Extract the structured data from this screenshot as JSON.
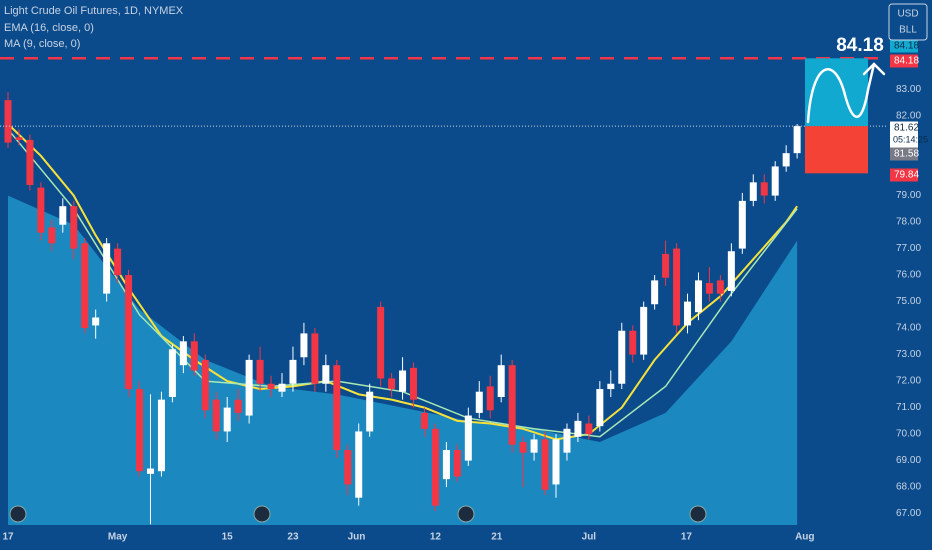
{
  "chart_data": {
    "type": "candlestick",
    "title": "Light Crude Oil Futures, 1D, NYMEX",
    "currency": "USD",
    "unit": "BLL",
    "up_color": "#ffffff",
    "down_color": "#f23645",
    "open": [
      82.6,
      81.2,
      81.1,
      79.3,
      77.8,
      77.9,
      78.6,
      77.2,
      74.1,
      75.3,
      77.0,
      76.0,
      71.7,
      68.5,
      68.6,
      71.4,
      72.6,
      73.5,
      72.8,
      71.3,
      70.1,
      71.3,
      70.7,
      72.8,
      71.9,
      71.6,
      71.9,
      72.9,
      73.8,
      71.9,
      72.6,
      69.4,
      67.6,
      70.1,
      74.8,
      72.1,
      71.6,
      72.5,
      70.8,
      70.2,
      68.3,
      69.4,
      69.0,
      70.8,
      71.8,
      71.4,
      72.6,
      69.7,
      69.3,
      69.8,
      68.1,
      69.3,
      69.9,
      70.4,
      70.3,
      71.7,
      71.9,
      73.9,
      73.0,
      74.9,
      76.8,
      77.0,
      74.1,
      74.6,
      75.7,
      75.8,
      75.4,
      77.0,
      78.8,
      79.5,
      79.0,
      80.1,
      80.6
    ],
    "high": [
      82.9,
      81.5,
      81.3,
      79.5,
      78.1,
      78.9,
      78.8,
      77.4,
      74.7,
      77.4,
      77.2,
      76.2,
      72.0,
      71.5,
      71.6,
      73.4,
      73.7,
      73.8,
      73.0,
      71.6,
      71.4,
      71.7,
      73.0,
      73.3,
      72.2,
      72.3,
      73.3,
      74.2,
      74.0,
      73.0,
      72.8,
      69.6,
      70.4,
      71.9,
      75.0,
      72.3,
      72.9,
      72.7,
      71.0,
      70.4,
      69.7,
      69.6,
      71.0,
      72.0,
      72.2,
      73.0,
      72.8,
      69.9,
      70.0,
      70.1,
      70.0,
      70.4,
      70.8,
      70.7,
      72.0,
      72.4,
      74.2,
      74.1,
      75.0,
      76.0,
      77.3,
      77.2,
      75.3,
      76.1,
      76.3,
      76.0,
      77.2,
      79.1,
      79.8,
      79.8,
      80.3,
      80.9,
      81.7
    ],
    "low": [
      80.8,
      80.9,
      79.2,
      77.3,
      76.9,
      77.6,
      76.6,
      73.8,
      73.6,
      75.0,
      75.7,
      71.4,
      68.4,
      66.6,
      68.4,
      71.2,
      72.3,
      72.2,
      70.6,
      69.8,
      69.7,
      70.5,
      70.4,
      71.6,
      71.4,
      71.4,
      71.6,
      72.6,
      71.6,
      71.6,
      69.1,
      67.7,
      67.3,
      69.9,
      71.8,
      71.4,
      71.3,
      71.0,
      69.9,
      67.1,
      68.0,
      68.2,
      68.8,
      70.6,
      70.6,
      71.2,
      69.3,
      68.0,
      69.0,
      67.7,
      67.6,
      69.0,
      69.7,
      69.8,
      70.1,
      71.4,
      71.7,
      72.7,
      72.8,
      74.7,
      75.6,
      73.8,
      73.8,
      74.3,
      75.0,
      75.0,
      75.2,
      76.8,
      78.6,
      78.7,
      78.8,
      79.9,
      80.4
    ],
    "close": [
      81.0,
      81.1,
      79.4,
      77.6,
      77.2,
      78.6,
      77.0,
      74.0,
      74.4,
      77.2,
      76.0,
      71.7,
      68.6,
      68.7,
      71.3,
      73.2,
      73.5,
      72.4,
      70.9,
      70.1,
      71.0,
      70.8,
      72.8,
      71.9,
      71.7,
      71.9,
      72.8,
      73.8,
      71.9,
      72.6,
      69.4,
      68.1,
      70.1,
      71.6,
      72.1,
      71.7,
      72.4,
      71.3,
      70.2,
      67.3,
      69.4,
      68.4,
      70.7,
      71.6,
      70.9,
      72.6,
      69.6,
      69.3,
      69.8,
      67.9,
      69.8,
      70.2,
      70.5,
      70.0,
      71.7,
      71.9,
      73.9,
      73.0,
      74.8,
      75.8,
      75.9,
      74.1,
      75.0,
      75.8,
      75.3,
      75.3,
      76.9,
      78.8,
      79.5,
      79.0,
      80.1,
      80.6,
      81.62
    ],
    "lines": [
      {
        "name": "EMA (16, close, 0)",
        "color": "#f7e23a",
        "x": [
          0,
          3,
          6,
          8,
          11,
          14,
          17,
          20,
          23,
          26,
          29,
          32,
          35,
          38,
          41,
          44,
          47,
          50,
          53,
          56,
          59,
          62,
          65,
          68,
          71,
          72
        ],
        "values": [
          81.7,
          80.5,
          79.0,
          77.5,
          75.5,
          73.7,
          72.8,
          72.0,
          71.7,
          71.8,
          72.0,
          71.5,
          71.3,
          71.0,
          70.5,
          70.4,
          70.2,
          69.8,
          70.0,
          71.0,
          72.8,
          74.2,
          75.2,
          76.6,
          78.0,
          78.6
        ]
      },
      {
        "name": "MA (9, close, 0)",
        "color": "#a8e8b4",
        "x": [
          0,
          6,
          12,
          18,
          24,
          30,
          36,
          42,
          48,
          54,
          60,
          66,
          72
        ],
        "values": [
          81.5,
          78.5,
          74.5,
          72.0,
          71.8,
          72.0,
          71.6,
          70.6,
          70.2,
          69.9,
          71.8,
          75.3,
          78.5
        ]
      }
    ],
    "area": {
      "color": "#1d8fc4",
      "x": [
        0,
        6,
        12,
        18,
        24,
        30,
        36,
        42,
        48,
        54,
        60,
        66,
        72
      ],
      "values": [
        79.0,
        77.9,
        74.7,
        72.8,
        71.8,
        71.5,
        71.0,
        70.5,
        70.2,
        69.7,
        70.8,
        73.5,
        77.3
      ]
    },
    "xticks": [
      {
        "value": 0,
        "label": "17"
      },
      {
        "value": 10,
        "label": "May"
      },
      {
        "value": 20,
        "label": "15"
      },
      {
        "value": 26,
        "label": "23"
      },
      {
        "value": 31.8,
        "label": "Jun"
      },
      {
        "value": 39,
        "label": "12"
      },
      {
        "value": 44.6,
        "label": "21"
      },
      {
        "value": 53,
        "label": "Jul"
      },
      {
        "value": 61.9,
        "label": "17"
      },
      {
        "value": 72.7,
        "label": "Aug"
      }
    ],
    "ylim": [
      66.57,
      86.38
    ],
    "yticks": [
      {
        "value": 67,
        "label": "67.00"
      },
      {
        "value": 68,
        "label": "68.00"
      },
      {
        "value": 69,
        "label": "69.00"
      },
      {
        "value": 70,
        "label": "70.00"
      },
      {
        "value": 71,
        "label": "71.00"
      },
      {
        "value": 72,
        "label": "72.00"
      },
      {
        "value": 73,
        "label": "73.00"
      },
      {
        "value": 74,
        "label": "74.00"
      },
      {
        "value": 75,
        "label": "75.00"
      },
      {
        "value": 76,
        "label": "76.00"
      },
      {
        "value": 77,
        "label": "77.00"
      },
      {
        "value": 78,
        "label": "78.00"
      },
      {
        "value": 79,
        "label": "79.00"
      },
      {
        "value": 82,
        "label": "82.00"
      },
      {
        "value": 83,
        "label": "83.00"
      }
    ],
    "position": {
      "target": 84.18,
      "entry": 81.62,
      "stop": 79.84,
      "target_color": "#12a9d1",
      "stop_color": "#f44336",
      "annotation": "84.18"
    },
    "price_labels": [
      {
        "value": 84.18,
        "color": "#12a9d1",
        "text_color": "#0b2a4a"
      },
      {
        "value": 84.18,
        "color": "#f23645",
        "text_color": "#ffffff"
      },
      {
        "value": 81.62,
        "color": "#ffffff",
        "text_color": "#0b2a4a",
        "countdown": "05:14:25"
      },
      {
        "value": 81.58,
        "color": "#787b86",
        "text_color": "#ffffff"
      },
      {
        "value": 79.84,
        "color": "#f23645",
        "text_color": "#ffffff"
      }
    ]
  }
}
